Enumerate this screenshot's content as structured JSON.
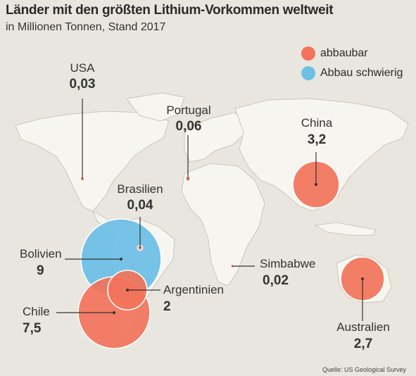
{
  "title": "Länder mit den größten Lithium-Vorkommen weltweit",
  "subtitle": "in Millionen Tonnen, Stand 2017",
  "source": "Quelle: US Geological Survey",
  "legend": {
    "abbaubar": "abbaubar",
    "schwierig": "Abbau schwierig"
  },
  "colors": {
    "abbaubar": "#f2735a",
    "schwierig": "#6fc0e6",
    "land": "#f7f5ef",
    "ocean": "#e8e6df",
    "border": "#c9c6bc"
  },
  "countries": [
    {
      "key": "usa",
      "name": "USA",
      "value": "0,03",
      "amount": 0.03,
      "category": "abbaubar"
    },
    {
      "key": "portugal",
      "name": "Portugal",
      "value": "0,06",
      "amount": 0.06,
      "category": "abbaubar"
    },
    {
      "key": "china",
      "name": "China",
      "value": "3,2",
      "amount": 3.2,
      "category": "abbaubar"
    },
    {
      "key": "brasilien",
      "name": "Brasilien",
      "value": "0,04",
      "amount": 0.04,
      "category": "abbaubar"
    },
    {
      "key": "bolivien",
      "name": "Bolivien",
      "value": "9",
      "amount": 9,
      "category": "schwierig"
    },
    {
      "key": "argentinien",
      "name": "Argentinien",
      "value": "2",
      "amount": 2,
      "category": "abbaubar"
    },
    {
      "key": "chile",
      "name": "Chile",
      "value": "7,5",
      "amount": 7.5,
      "category": "abbaubar"
    },
    {
      "key": "simbabwe",
      "name": "Simbabwe",
      "value": "0,02",
      "amount": 0.02,
      "category": "abbaubar"
    },
    {
      "key": "australien",
      "name": "Australien",
      "value": "2,7",
      "amount": 2.7,
      "category": "abbaubar"
    }
  ]
}
